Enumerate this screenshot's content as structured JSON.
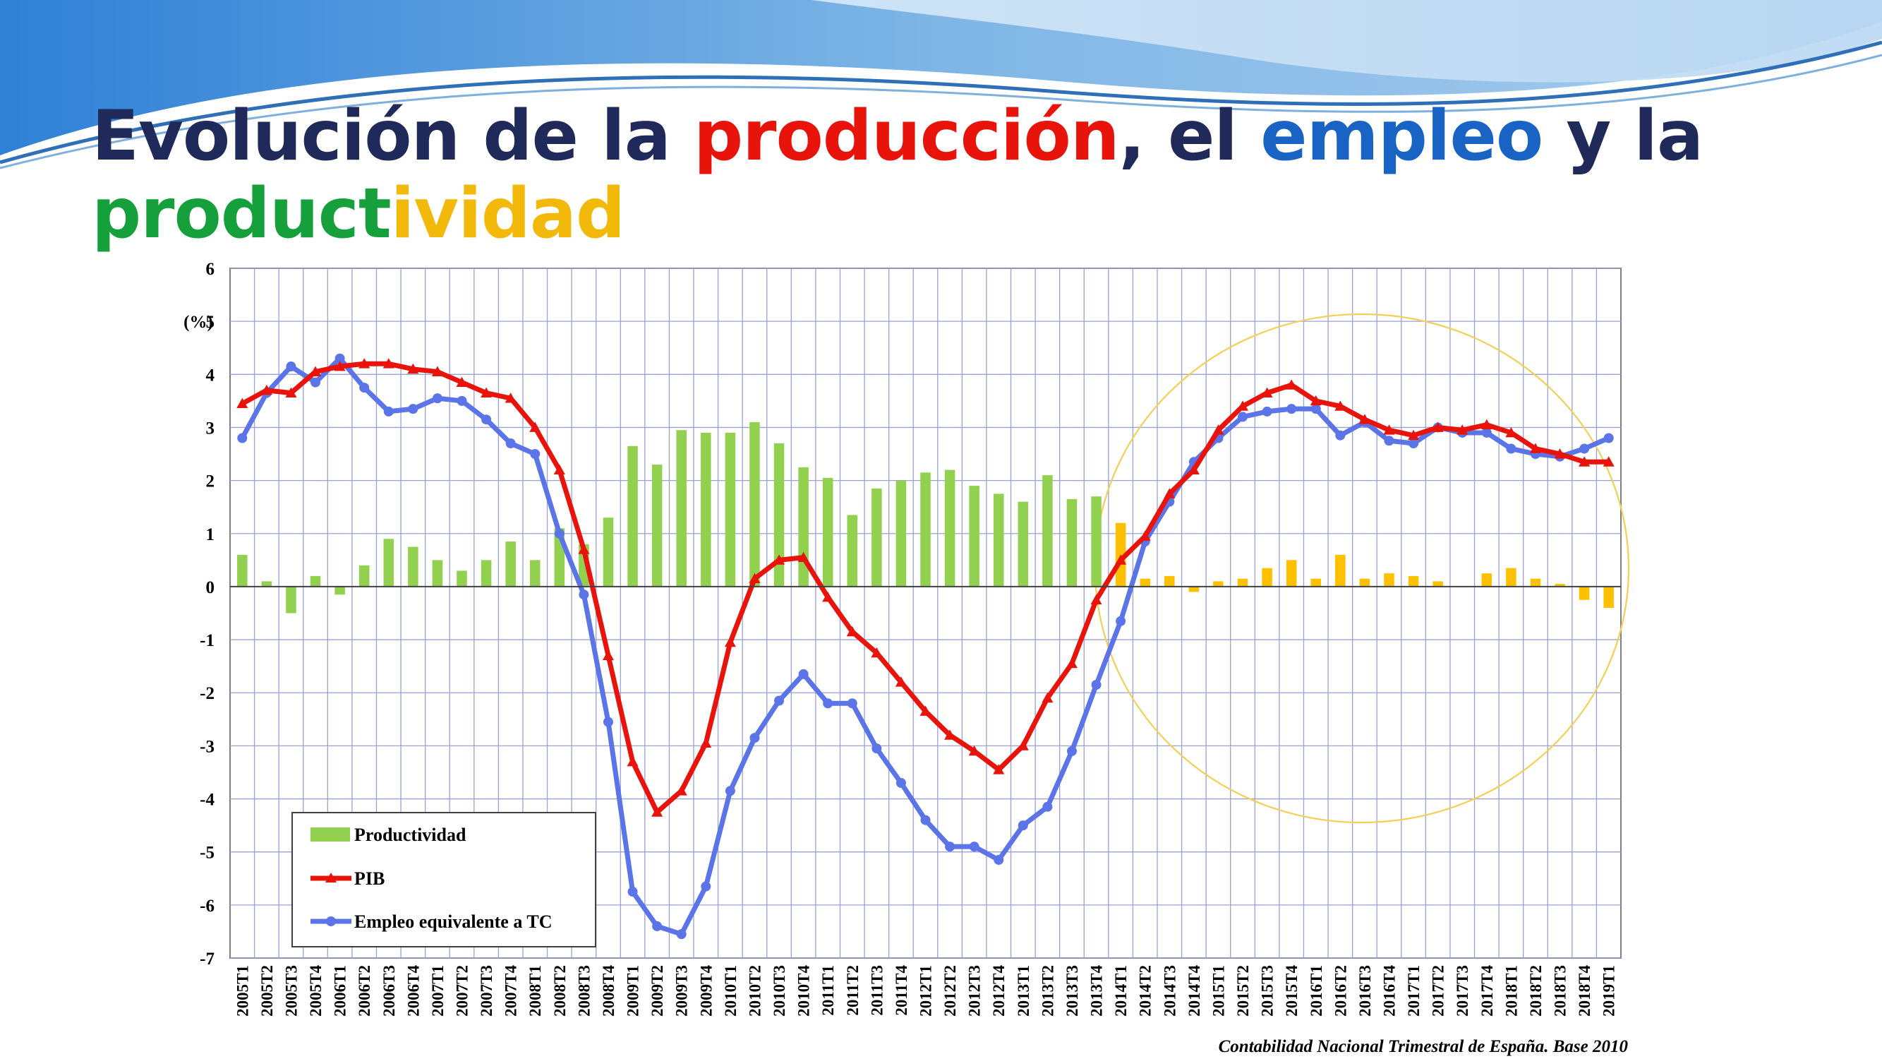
{
  "slide": {
    "title_parts": [
      {
        "text": "Evolución de la ",
        "color": "#1f2a5a"
      },
      {
        "text": "producción",
        "color": "#e8140c"
      },
      {
        "text": ", el ",
        "color": "#1f2a5a"
      },
      {
        "text": "empleo",
        "color": "#1863c4"
      },
      {
        "text": " y la",
        "color": "#1f2a5a"
      },
      {
        "text": "product",
        "color": "#15a03c"
      },
      {
        "text": "ividad",
        "color": "#f2b90a"
      }
    ],
    "source": "Contabilidad Nacional Trimestral de España. Base 2010"
  },
  "colors": {
    "productividad_pre2014": "#92d050",
    "productividad_post2014": "#ffc000",
    "pib": "#e8140c",
    "empleo": "#5b74e8",
    "highlight_circle": "#f3cf57"
  },
  "chart_data": {
    "type": "bar+line",
    "ylabel": "(%)",
    "ylim": [
      -7,
      6
    ],
    "yticks": [
      -7,
      -6,
      -5,
      -4,
      -3,
      -2,
      -1,
      0,
      1,
      2,
      3,
      4,
      5,
      6
    ],
    "grid": true,
    "legend_position": "bottom-left",
    "legend": [
      "Productividad",
      "PIB",
      "Empleo equivalente a TC"
    ],
    "highlight": "circle around 2014T1–2019T1",
    "categories": [
      "2005T1",
      "2005T2",
      "2005T3",
      "2005T4",
      "2006T1",
      "2006T2",
      "2006T3",
      "2006T4",
      "2007T1",
      "2007T2",
      "2007T3",
      "2007T4",
      "2008T1",
      "2008T2",
      "2008T3",
      "2008T4",
      "2009T1",
      "2009T2",
      "2009T3",
      "2009T4",
      "2010T1",
      "2010T2",
      "2010T3",
      "2010T4",
      "2011T1",
      "2011T2",
      "2011T3",
      "2011T4",
      "2012T1",
      "2012T2",
      "2012T3",
      "2012T4",
      "2013T1",
      "2013T2",
      "2013T3",
      "2013T4",
      "2014T1",
      "2014T2",
      "2014T3",
      "2014T4",
      "2015T1",
      "2015T2",
      "2015T3",
      "2015T4",
      "2016T1",
      "2016T2",
      "2016T3",
      "2016T4",
      "2017T1",
      "2017T2",
      "2017T3",
      "2017T4",
      "2018T1",
      "2018T2",
      "2018T3",
      "2018T4",
      "2019T1"
    ],
    "series": [
      {
        "name": "Productividad",
        "kind": "bar",
        "values": [
          0.6,
          0.1,
          -0.5,
          0.2,
          -0.15,
          0.4,
          0.9,
          0.75,
          0.5,
          0.3,
          0.5,
          0.85,
          0.5,
          1.1,
          0.8,
          1.3,
          2.65,
          2.3,
          2.95,
          2.9,
          2.9,
          3.1,
          2.7,
          2.25,
          2.05,
          1.35,
          1.85,
          2.0,
          2.15,
          2.2,
          1.9,
          1.75,
          1.6,
          2.1,
          1.65,
          1.7,
          1.2,
          0.15,
          0.2,
          -0.1,
          0.1,
          0.15,
          0.35,
          0.5,
          0.15,
          0.6,
          0.15,
          0.25,
          0.2,
          0.1,
          0.0,
          0.25,
          0.35,
          0.15,
          0.05,
          -0.25,
          -0.4
        ]
      },
      {
        "name": "PIB",
        "kind": "line",
        "values": [
          3.45,
          3.7,
          3.65,
          4.05,
          4.15,
          4.2,
          4.2,
          4.1,
          4.05,
          3.85,
          3.65,
          3.55,
          3.0,
          2.2,
          0.7,
          -1.3,
          -3.3,
          -4.25,
          -3.85,
          -2.95,
          -1.05,
          0.15,
          0.5,
          0.55,
          -0.2,
          -0.85,
          -1.25,
          -1.8,
          -2.35,
          -2.8,
          -3.1,
          -3.45,
          -3.0,
          -2.1,
          -1.45,
          -0.25,
          0.5,
          0.95,
          1.75,
          2.2,
          2.95,
          3.4,
          3.65,
          3.8,
          3.5,
          3.4,
          3.15,
          2.95,
          2.85,
          3.0,
          2.95,
          3.05,
          2.9,
          2.6,
          2.5,
          2.35,
          2.35
        ]
      },
      {
        "name": "Empleo equivalente a TC",
        "kind": "line",
        "values": [
          2.8,
          3.65,
          4.15,
          3.85,
          4.3,
          3.75,
          3.3,
          3.35,
          3.55,
          3.5,
          3.15,
          2.7,
          2.5,
          1.0,
          -0.15,
          -2.55,
          -5.75,
          -6.4,
          -6.55,
          -5.65,
          -3.85,
          -2.85,
          -2.15,
          -1.65,
          -2.2,
          -2.2,
          -3.05,
          -3.7,
          -4.4,
          -4.9,
          -4.9,
          -5.15,
          -4.5,
          -4.15,
          -3.1,
          -1.85,
          -0.65,
          0.85,
          1.6,
          2.35,
          2.8,
          3.2,
          3.3,
          3.35,
          3.35,
          2.85,
          3.1,
          2.75,
          2.7,
          3.0,
          2.9,
          2.9,
          2.6,
          2.5,
          2.45,
          2.6,
          2.8
        ]
      }
    ]
  }
}
